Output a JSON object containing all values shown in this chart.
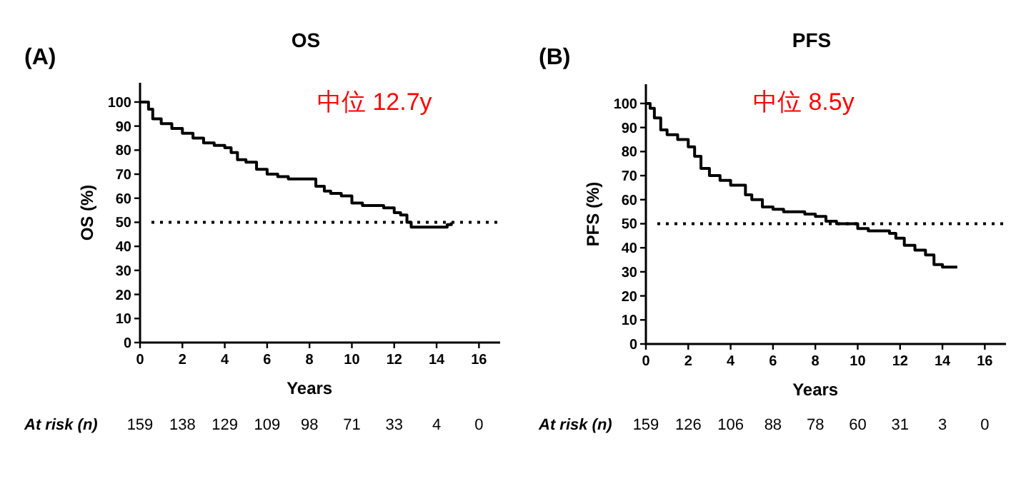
{
  "chart_data": [
    {
      "type": "step",
      "title": "OS",
      "xlabel": "Years",
      "ylabel": "OS (%)",
      "xlim": [
        0,
        17
      ],
      "ylim": [
        0,
        108
      ],
      "xticks": [
        0,
        2,
        4,
        6,
        8,
        10,
        12,
        14,
        16
      ],
      "yticks": [
        0,
        10,
        20,
        30,
        40,
        50,
        60,
        70,
        80,
        90,
        100
      ],
      "grid": false,
      "ref_lines": [
        {
          "axis": "y",
          "value": 50,
          "line_style": "dotted",
          "color": "#000000"
        }
      ],
      "annotations": [
        "(A)",
        "中位 12.7y",
        "At risk (n)",
        "159",
        "138",
        "129",
        "109",
        "98",
        "71",
        "33",
        "4",
        "0"
      ],
      "series": [
        {
          "color": "#000000",
          "x": [
            0,
            0.3,
            0.4,
            0.6,
            1,
            1.5,
            2,
            2.5,
            3,
            3.5,
            4,
            4.3,
            4.6,
            5,
            5.5,
            6,
            6.5,
            7,
            7.5,
            8,
            8.3,
            8.7,
            9,
            9.5,
            10,
            10.5,
            11,
            11.5,
            12,
            12.3,
            12.6,
            12.8,
            13.5,
            14,
            14.5,
            14.7
          ],
          "values": [
            100,
            100,
            97,
            93,
            91,
            89,
            87,
            85,
            83,
            82,
            81,
            79,
            76,
            75,
            72,
            70,
            69,
            68,
            68,
            68,
            65,
            63,
            62,
            61,
            58,
            57,
            57,
            56,
            54,
            53,
            50,
            48,
            48,
            48,
            49,
            50
          ]
        }
      ]
    },
    {
      "type": "step",
      "title": "PFS",
      "xlabel": "Years",
      "ylabel": "PFS (%)",
      "xlim": [
        0,
        17
      ],
      "ylim": [
        0,
        108
      ],
      "xticks": [
        0,
        2,
        4,
        6,
        8,
        10,
        12,
        14,
        16
      ],
      "yticks": [
        0,
        10,
        20,
        30,
        40,
        50,
        60,
        70,
        80,
        90,
        100
      ],
      "grid": false,
      "ref_lines": [
        {
          "axis": "y",
          "value": 50,
          "line_style": "dotted",
          "color": "#000000"
        }
      ],
      "annotations": [
        "(B)",
        "中位 8.5y",
        "At risk (n)",
        "159",
        "126",
        "106",
        "88",
        "78",
        "60",
        "31",
        "3",
        "0"
      ],
      "series": [
        {
          "color": "#000000",
          "x": [
            0,
            0.2,
            0.4,
            0.7,
            1,
            1.5,
            2,
            2.3,
            2.6,
            3,
            3.5,
            4,
            4.4,
            4.7,
            5,
            5.5,
            6,
            6.5,
            7,
            7.5,
            8,
            8.5,
            9,
            9.5,
            10,
            10.5,
            11,
            11.5,
            11.8,
            12.2,
            12.7,
            13.2,
            13.6,
            14,
            14.7
          ],
          "values": [
            100,
            98,
            94,
            89,
            87,
            85,
            82,
            78,
            73,
            70,
            68,
            66,
            66,
            62,
            60,
            57,
            56,
            55,
            55,
            54,
            53,
            51,
            50,
            50,
            48,
            47,
            47,
            46,
            44,
            41,
            39,
            37,
            33,
            32,
            32
          ]
        }
      ]
    }
  ]
}
